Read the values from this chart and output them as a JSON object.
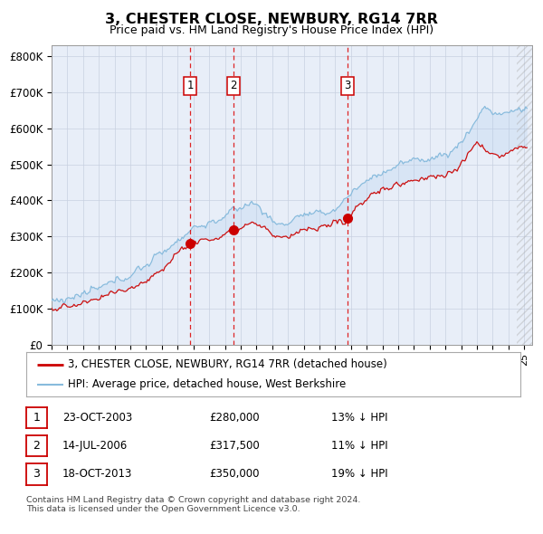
{
  "title": "3, CHESTER CLOSE, NEWBURY, RG14 7RR",
  "subtitle": "Price paid vs. HM Land Registry's House Price Index (HPI)",
  "ylabel_ticks": [
    "£0",
    "£100K",
    "£200K",
    "£300K",
    "£400K",
    "£500K",
    "£600K",
    "£700K",
    "£800K"
  ],
  "ytick_values": [
    0,
    100000,
    200000,
    300000,
    400000,
    500000,
    600000,
    700000,
    800000
  ],
  "ylim": [
    0,
    830000
  ],
  "transactions": [
    {
      "label": "1",
      "price": 280000,
      "x": 2003.81
    },
    {
      "label": "2",
      "price": 317500,
      "x": 2006.54
    },
    {
      "label": "3",
      "price": 350000,
      "x": 2013.8
    }
  ],
  "transaction_notes": [
    {
      "num": "1",
      "date": "23-OCT-2003",
      "price": "£280,000",
      "note": "13% ↓ HPI"
    },
    {
      "num": "2",
      "date": "14-JUL-2006",
      "price": "£317,500",
      "note": "11% ↓ HPI"
    },
    {
      "num": "3",
      "date": "18-OCT-2013",
      "price": "£350,000",
      "note": "19% ↓ HPI"
    }
  ],
  "legend_entries": [
    {
      "label": "3, CHESTER CLOSE, NEWBURY, RG14 7RR (detached house)",
      "color": "#cc0000",
      "lw": 2
    },
    {
      "label": "HPI: Average price, detached house, West Berkshire",
      "color": "#88bbdd",
      "lw": 1.5
    }
  ],
  "footer": "Contains HM Land Registry data © Crown copyright and database right 2024.\nThis data is licensed under the Open Government Licence v3.0.",
  "background_color": "#ffffff",
  "chart_bg": "#e8eef8",
  "grid_color": "#c8d0e0",
  "xmin": 1995.0,
  "xmax": 2025.5
}
